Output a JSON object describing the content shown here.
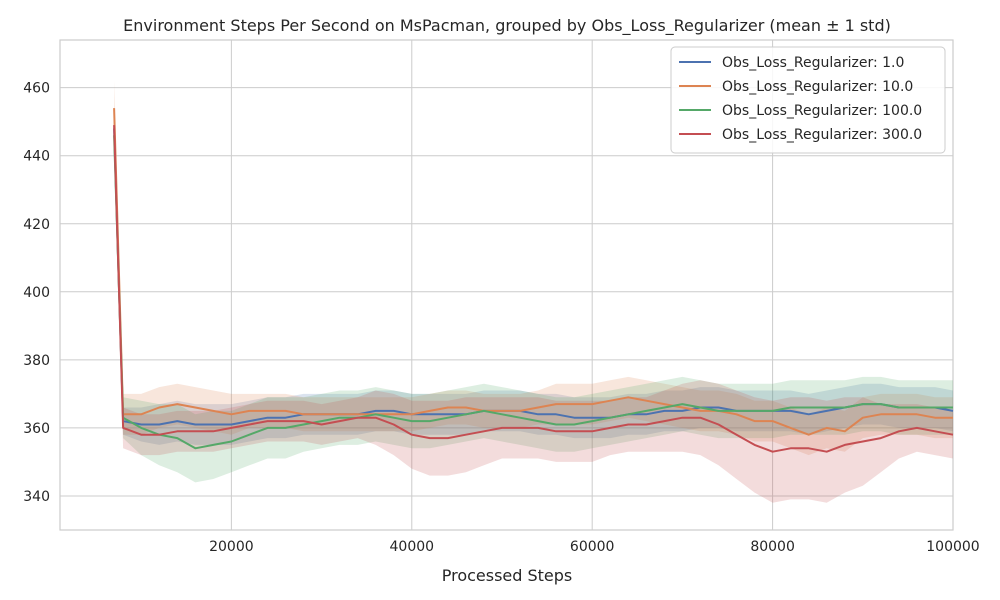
{
  "chart_data": {
    "type": "line",
    "title": "Environment Steps Per Second on MsPacman, grouped by Obs_Loss_Regularizer (mean ± 1 std)",
    "xlabel": "Processed Steps",
    "ylabel": "",
    "xlim": [
      1000,
      100000
    ],
    "ylim": [
      330,
      474
    ],
    "xticks": [
      "20000",
      "40000",
      "60000",
      "80000",
      "100000"
    ],
    "yticks": [
      "340",
      "360",
      "380",
      "400",
      "420",
      "440",
      "460"
    ],
    "grid": true,
    "legend_position": "top-right",
    "band": "mean ± 1 std",
    "x": [
      7000,
      8000,
      10000,
      12000,
      14000,
      16000,
      18000,
      20000,
      22000,
      24000,
      26000,
      28000,
      30000,
      32000,
      34000,
      36000,
      38000,
      40000,
      42000,
      44000,
      46000,
      48000,
      50000,
      52000,
      54000,
      56000,
      58000,
      60000,
      62000,
      64000,
      66000,
      68000,
      70000,
      72000,
      74000,
      76000,
      78000,
      80000,
      82000,
      84000,
      86000,
      88000,
      90000,
      92000,
      94000,
      96000,
      98000,
      100000
    ],
    "series": [
      {
        "name": "Obs_Loss_Regularizer: 1.0",
        "color": "#4c72b0",
        "values": [
          448,
          362,
          361,
          361,
          362,
          361,
          361,
          361,
          362,
          363,
          363,
          364,
          364,
          364,
          364,
          365,
          365,
          364,
          364,
          364,
          364,
          365,
          365,
          365,
          364,
          364,
          363,
          363,
          363,
          364,
          364,
          365,
          365,
          366,
          366,
          365,
          365,
          365,
          365,
          364,
          365,
          366,
          367,
          367,
          366,
          366,
          366,
          365
        ],
        "std": [
          6,
          4,
          5,
          6,
          6,
          6,
          6,
          6,
          6,
          6,
          6,
          6,
          6,
          6,
          6,
          6,
          6,
          6,
          6,
          6,
          6,
          6,
          6,
          6,
          6,
          6,
          6,
          6,
          6,
          6,
          6,
          6,
          6,
          6,
          6,
          6,
          6,
          6,
          6,
          6,
          6,
          6,
          6,
          6,
          6,
          6,
          6,
          6
        ]
      },
      {
        "name": "Obs_Loss_Regularizer: 10.0",
        "color": "#dd8452",
        "values": [
          454,
          364,
          364,
          366,
          367,
          366,
          365,
          364,
          365,
          365,
          365,
          364,
          364,
          364,
          364,
          364,
          364,
          364,
          365,
          366,
          366,
          365,
          365,
          365,
          366,
          367,
          367,
          367,
          368,
          369,
          368,
          367,
          366,
          365,
          365,
          364,
          362,
          362,
          360,
          358,
          360,
          359,
          363,
          364,
          364,
          364,
          363,
          363
        ],
        "std": [
          8,
          6,
          6,
          6,
          6,
          6,
          6,
          6,
          5,
          5,
          5,
          5,
          5,
          5,
          5,
          5,
          5,
          5,
          5,
          5,
          5,
          5,
          5,
          5,
          5,
          6,
          6,
          6,
          6,
          6,
          6,
          6,
          6,
          6,
          6,
          6,
          6,
          6,
          6,
          6,
          6,
          6,
          6,
          6,
          6,
          6,
          6,
          6
        ]
      },
      {
        "name": "Obs_Loss_Regularizer: 100.0",
        "color": "#55a868",
        "values": [
          446,
          363,
          360,
          358,
          357,
          354,
          355,
          356,
          358,
          360,
          360,
          361,
          362,
          363,
          363,
          364,
          363,
          362,
          362,
          363,
          364,
          365,
          364,
          363,
          362,
          361,
          361,
          362,
          363,
          364,
          365,
          366,
          367,
          366,
          365,
          365,
          365,
          365,
          366,
          366,
          366,
          366,
          367,
          367,
          366,
          366,
          366,
          366
        ],
        "std": [
          6,
          6,
          8,
          9,
          10,
          10,
          10,
          9,
          9,
          9,
          9,
          8,
          8,
          8,
          8,
          8,
          8,
          8,
          8,
          8,
          8,
          8,
          8,
          8,
          8,
          8,
          8,
          8,
          8,
          8,
          8,
          8,
          8,
          8,
          8,
          8,
          8,
          8,
          8,
          8,
          8,
          8,
          8,
          8,
          8,
          8,
          8,
          8
        ]
      },
      {
        "name": "Obs_Loss_Regularizer: 300.0",
        "color": "#c44e52",
        "values": [
          449,
          360,
          358,
          358,
          359,
          359,
          359,
          360,
          361,
          362,
          362,
          362,
          361,
          362,
          363,
          363,
          361,
          358,
          357,
          357,
          358,
          359,
          360,
          360,
          360,
          359,
          359,
          359,
          360,
          361,
          361,
          362,
          363,
          363,
          361,
          358,
          355,
          353,
          354,
          354,
          353,
          355,
          356,
          357,
          359,
          360,
          359,
          358
        ],
        "std": [
          6,
          6,
          6,
          6,
          6,
          6,
          6,
          6,
          6,
          6,
          6,
          6,
          6,
          6,
          6,
          8,
          9,
          10,
          11,
          11,
          11,
          10,
          9,
          9,
          9,
          9,
          9,
          9,
          8,
          8,
          8,
          9,
          10,
          11,
          12,
          13,
          14,
          15,
          15,
          15,
          15,
          14,
          13,
          10,
          8,
          7,
          7,
          7
        ]
      }
    ]
  }
}
